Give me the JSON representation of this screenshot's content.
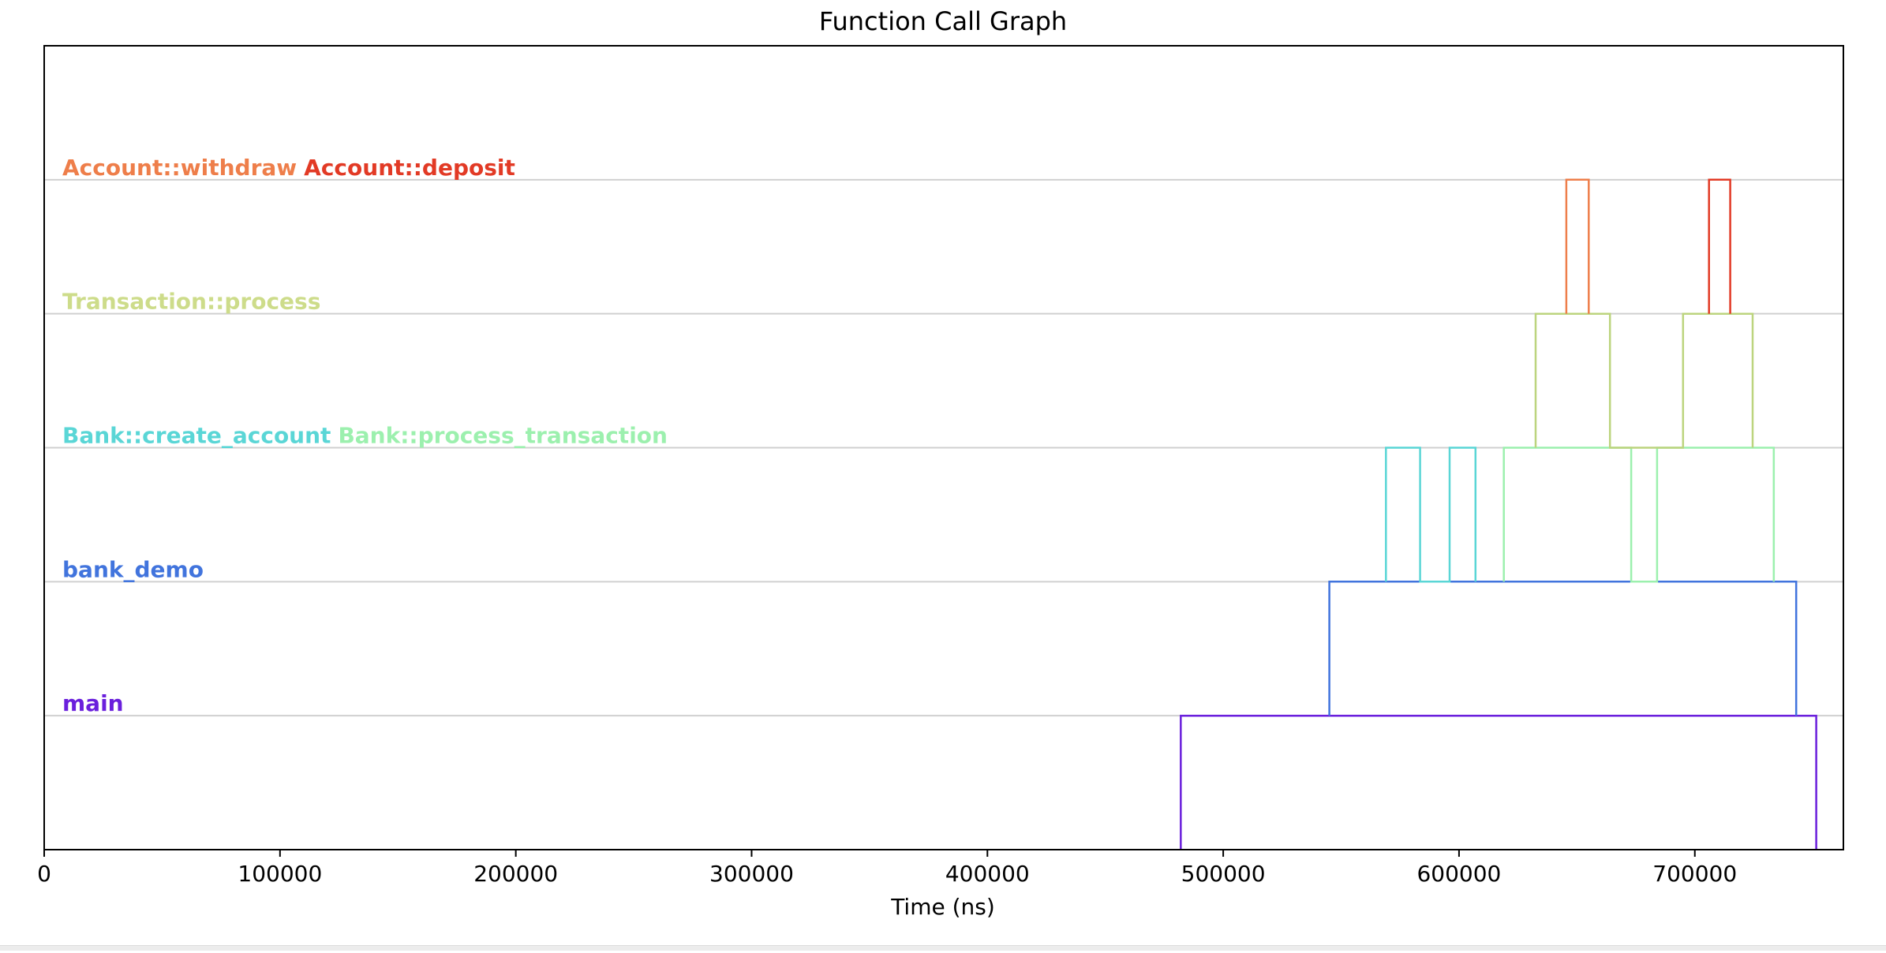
{
  "chart_data": {
    "type": "line",
    "title": "Function Call Graph",
    "xlabel": "Time (ns)",
    "ylabel": "",
    "xlim": [
      0,
      763000
    ],
    "ylim": [
      0,
      6
    ],
    "xticks": [
      0,
      100000,
      200000,
      300000,
      400000,
      500000,
      600000,
      700000
    ],
    "xtick_labels": [
      "0",
      "100000",
      "200000",
      "300000",
      "400000",
      "500000",
      "600000",
      "700000"
    ],
    "grid_levels": [
      1,
      2,
      3,
      4,
      5
    ],
    "level_labels": [
      {
        "level": 1,
        "items": [
          {
            "text": "main",
            "color": "#6a1fdc"
          }
        ]
      },
      {
        "level": 2,
        "items": [
          {
            "text": "bank_demo",
            "color": "#4174dd"
          }
        ]
      },
      {
        "level": 3,
        "items": [
          {
            "text": "Bank::create_account",
            "color": "#5ad6d6"
          },
          {
            "text": "Bank::process_transaction",
            "color": "#9cf0ae"
          }
        ]
      },
      {
        "level": 4,
        "items": [
          {
            "text": "Transaction::process",
            "color": "#cddc8a"
          }
        ]
      },
      {
        "level": 5,
        "items": [
          {
            "text": "Account::withdraw",
            "color": "#ee7e4a"
          },
          {
            "text": "Account::deposit",
            "color": "#e23a25"
          }
        ]
      }
    ],
    "series": [
      {
        "name": "main",
        "color": "#6a1fdc",
        "points": [
          [
            482000,
            0
          ],
          [
            482000,
            1
          ],
          [
            545000,
            1
          ],
          [
            743000,
            1
          ],
          [
            751500,
            1
          ],
          [
            751500,
            0
          ]
        ]
      },
      {
        "name": "bank_demo",
        "color": "#4174dd",
        "points": [
          [
            545000,
            1
          ],
          [
            545000,
            2
          ],
          [
            569000,
            2
          ],
          [
            583500,
            2
          ],
          [
            596000,
            2
          ],
          [
            607000,
            2
          ],
          [
            619000,
            2
          ],
          [
            673000,
            2
          ],
          [
            684000,
            2
          ],
          [
            733500,
            2
          ],
          [
            743000,
            2
          ],
          [
            743000,
            1
          ]
        ]
      },
      {
        "name": "Bank::create_account",
        "color": "#5ad6d6",
        "points": [
          [
            569000,
            2
          ],
          [
            569000,
            3
          ],
          [
            583500,
            3
          ],
          [
            583500,
            2
          ],
          [
            596000,
            2
          ],
          [
            596000,
            3
          ],
          [
            607000,
            3
          ],
          [
            607000,
            2
          ]
        ]
      },
      {
        "name": "Bank::process_transaction",
        "color": "#9cf0ae",
        "points": [
          [
            619000,
            2
          ],
          [
            619000,
            3
          ],
          [
            632500,
            3
          ],
          [
            664000,
            3
          ],
          [
            673000,
            3
          ],
          [
            673000,
            2
          ],
          [
            684000,
            2
          ],
          [
            684000,
            3
          ],
          [
            695000,
            3
          ],
          [
            724500,
            3
          ],
          [
            733500,
            3
          ],
          [
            733500,
            2
          ]
        ]
      },
      {
        "name": "Transaction::process",
        "color": "#bcd47e",
        "points": [
          [
            632500,
            3
          ],
          [
            632500,
            4
          ],
          [
            645500,
            4
          ],
          [
            655000,
            4
          ],
          [
            664000,
            4
          ],
          [
            664000,
            3
          ],
          [
            695000,
            3
          ],
          [
            695000,
            4
          ],
          [
            706000,
            4
          ],
          [
            715000,
            4
          ],
          [
            724500,
            4
          ],
          [
            724500,
            3
          ]
        ]
      },
      {
        "name": "Account::withdraw",
        "color": "#ee7e4a",
        "points": [
          [
            645500,
            4
          ],
          [
            645500,
            5
          ],
          [
            655000,
            5
          ],
          [
            655000,
            4
          ]
        ]
      },
      {
        "name": "Account::deposit",
        "color": "#e23a25",
        "points": [
          [
            706000,
            4
          ],
          [
            706000,
            5
          ],
          [
            715000,
            5
          ],
          [
            715000,
            4
          ]
        ]
      }
    ]
  }
}
